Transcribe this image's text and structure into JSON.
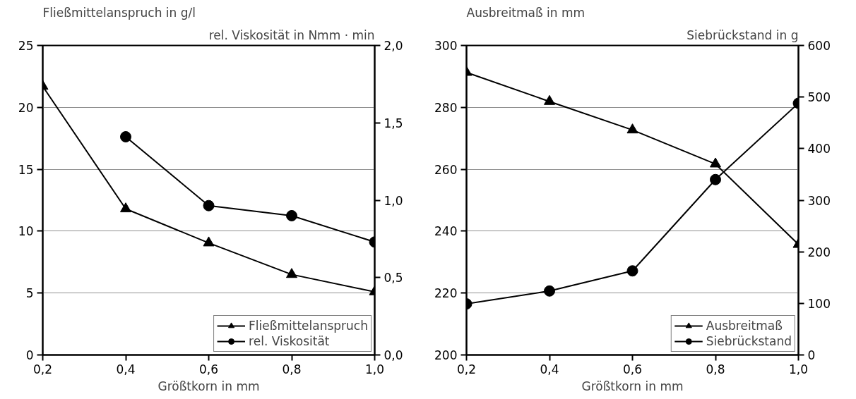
{
  "chart_data": [
    {
      "type": "line",
      "x": [
        0.2,
        0.4,
        0.6,
        0.8,
        1.0
      ],
      "xlabel": "Größtkorn in mm",
      "ylabel": "Fließmittelanspruch in g/l",
      "y2label": "rel. Viskosität in Nmm · min",
      "xlim": [
        0.2,
        1.0
      ],
      "xticks": [
        {
          "value": 0.2,
          "label": "0,2"
        },
        {
          "value": 0.4,
          "label": "0,4"
        },
        {
          "value": 0.6,
          "label": "0,6"
        },
        {
          "value": 0.8,
          "label": "0,8"
        },
        {
          "value": 1.0,
          "label": "1,0"
        }
      ],
      "ylim": [
        0,
        25
      ],
      "yticks": [
        0,
        5,
        10,
        15,
        20,
        25
      ],
      "y2lim": [
        0,
        2.0
      ],
      "y2ticks": [
        {
          "value": 0,
          "label": "0,0"
        },
        {
          "value": 0.5,
          "label": "0,5"
        },
        {
          "value": 1.0,
          "label": "1,0"
        },
        {
          "value": 1.5,
          "label": "1,5"
        },
        {
          "value": 2.0,
          "label": "2,0"
        }
      ],
      "grid": "y",
      "legend": "bottom right",
      "line_style": "solid",
      "series": [
        {
          "name": "Fließmittelanspruch",
          "color": "#000000",
          "marker": "triangle",
          "values": [
            21.7,
            11.8,
            9.05,
            6.5,
            5.1
          ]
        },
        {
          "name": "rel. Viskosität",
          "color": "#000000",
          "marker": "circle",
          "axis": "y2",
          "values": [
            null,
            1.41,
            0.965,
            0.9,
            0.73
          ]
        }
      ]
    },
    {
      "type": "line",
      "x": [
        0.2,
        0.4,
        0.6,
        0.8,
        1.0
      ],
      "xlabel": "Größtkorn in mm",
      "ylabel": "Ausbreitmaß in mm",
      "y2label": "Siebrückstand in g",
      "xlim": [
        0.2,
        1.0
      ],
      "xticks": [
        {
          "value": 0.2,
          "label": "0,2"
        },
        {
          "value": 0.4,
          "label": "0,4"
        },
        {
          "value": 0.6,
          "label": "0,6"
        },
        {
          "value": 0.8,
          "label": "0,8"
        },
        {
          "value": 1.0,
          "label": "1,0"
        }
      ],
      "ylim": [
        200,
        300
      ],
      "yticks": [
        200,
        220,
        240,
        260,
        280,
        300
      ],
      "y2lim": [
        0,
        600
      ],
      "y2ticks": [
        0,
        100,
        200,
        300,
        400,
        500,
        600
      ],
      "grid": "y",
      "legend": "bottom right",
      "line_style": "solid",
      "series": [
        {
          "name": "Ausbreitmaß",
          "color": "#000000",
          "marker": "triangle",
          "values": [
            291.3,
            281.9,
            272.7,
            261.7,
            235.7
          ]
        },
        {
          "name": "Siebrückstand",
          "color": "#000000",
          "marker": "circle",
          "axis": "y2",
          "values": [
            99,
            124,
            163,
            340,
            488
          ]
        }
      ]
    }
  ]
}
